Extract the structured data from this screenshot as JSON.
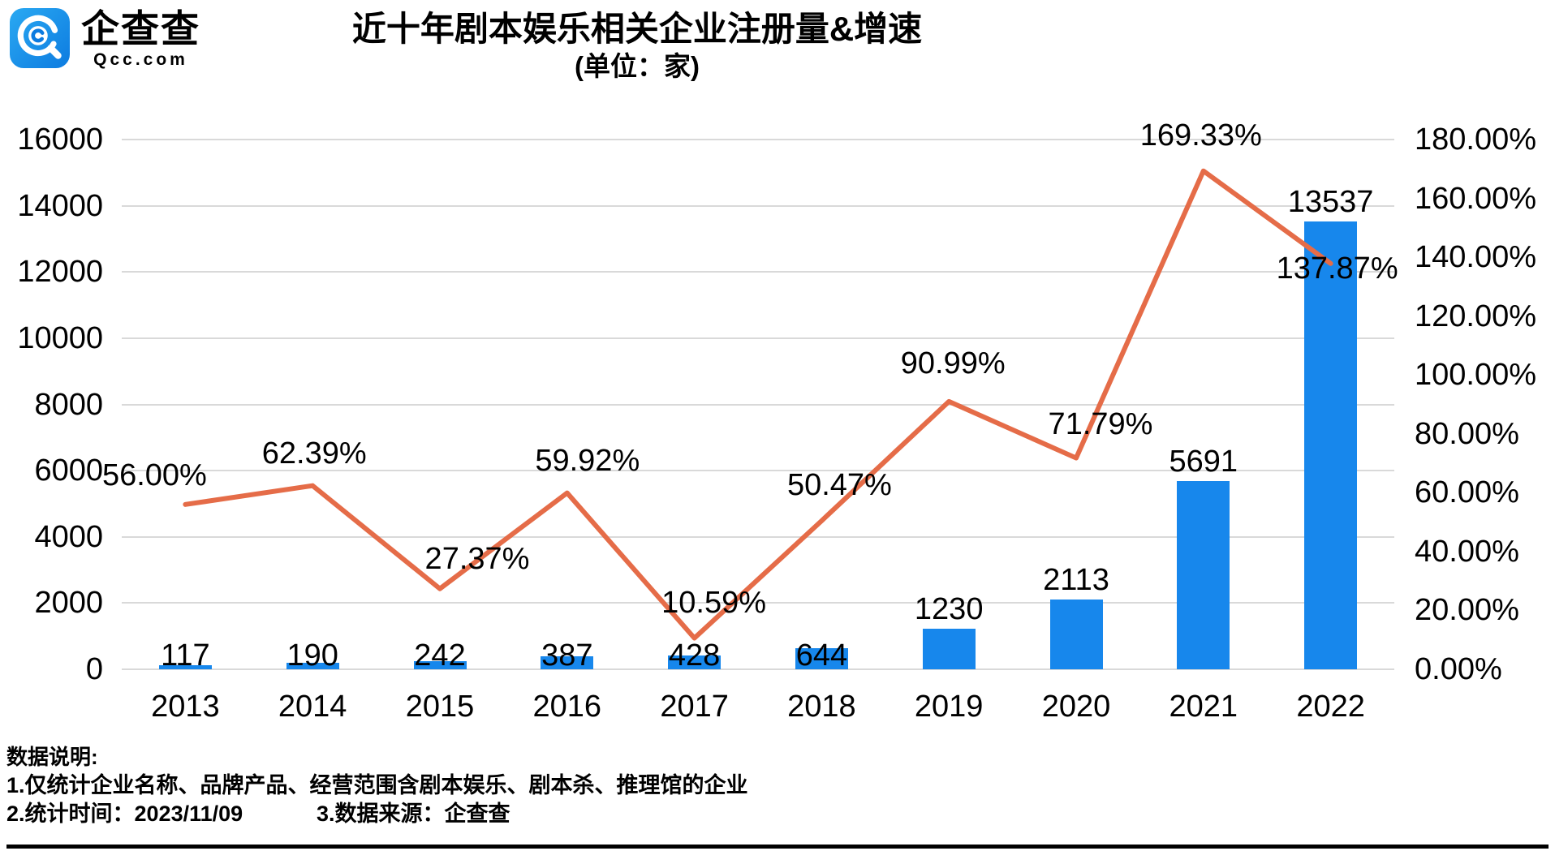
{
  "header": {
    "logo": {
      "brand": "企查查",
      "domain": "Qcc.com"
    },
    "title": "近十年剧本娱乐相关企业注册量&增速",
    "subtitle": "(单位：家)"
  },
  "chart_data": {
    "type": "combo",
    "title": "近十年剧本娱乐相关企业注册量&增速",
    "subtitle": "(单位：家)",
    "categories": [
      "2013",
      "2014",
      "2015",
      "2016",
      "2017",
      "2018",
      "2019",
      "2020",
      "2021",
      "2022"
    ],
    "series": [
      {
        "name": "注册量(家)",
        "type": "bar",
        "axis": "left",
        "color": "#1787ec",
        "values": [
          117,
          190,
          242,
          387,
          428,
          644,
          1230,
          2113,
          5691,
          13537
        ],
        "value_labels": [
          "117",
          "190",
          "242",
          "387",
          "428",
          "644",
          "1230",
          "2113",
          "5691",
          "13537"
        ]
      },
      {
        "name": "增速",
        "type": "line",
        "axis": "right",
        "color": "#e56c48",
        "values": [
          56.0,
          62.39,
          27.37,
          59.92,
          10.59,
          50.47,
          90.99,
          71.79,
          169.33,
          137.87
        ],
        "value_labels": [
          "56.00%",
          "62.39%",
          "27.37%",
          "59.92%",
          "10.59%",
          "50.47%",
          "90.99%",
          "71.79%",
          "169.33%",
          "137.87%"
        ]
      }
    ],
    "left_axis": {
      "min": 0,
      "max": 16000,
      "step": 2000,
      "tick_labels": [
        "0",
        "2000",
        "4000",
        "6000",
        "8000",
        "10000",
        "12000",
        "14000",
        "16000"
      ]
    },
    "right_axis": {
      "min": 0,
      "max": 180,
      "step": 20,
      "tick_labels": [
        "0.00%",
        "20.00%",
        "40.00%",
        "60.00%",
        "80.00%",
        "100.00%",
        "120.00%",
        "140.00%",
        "160.00%",
        "180.00%"
      ]
    },
    "legend": "none",
    "grid": "horizontal",
    "grid_color": "#d9d9d9"
  },
  "footer": {
    "heading": "数据说明:",
    "note1": "1.仅统计企业名称、品牌产品、经营范围含剧本娱乐、剧本杀、推理馆的企业",
    "note2": "2.统计时间：2023/11/09",
    "note3": "3.数据来源：企查查"
  }
}
